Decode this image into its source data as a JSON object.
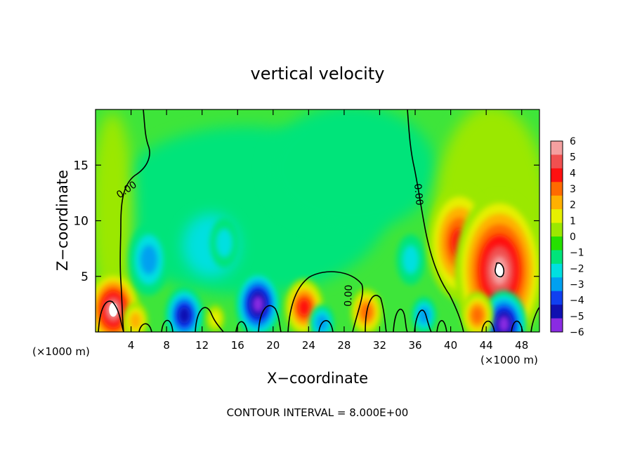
{
  "chart_data": {
    "type": "heatmap",
    "title": "vertical velocity",
    "xlabel": "X−coordinate",
    "ylabel": "Z−coordinate",
    "x_unit_left": "(×1000 m)",
    "x_unit_right": "(×1000 m)",
    "footer": "CONTOUR INTERVAL = 8.000E+00",
    "xlim": [
      0,
      50
    ],
    "ylim": [
      0,
      20
    ],
    "xticks": [
      4,
      8,
      12,
      16,
      20,
      24,
      28,
      32,
      36,
      40,
      44,
      48
    ],
    "xtick_labels": [
      "4",
      "8",
      "12",
      "16",
      "20",
      "24",
      "28",
      "32",
      "36",
      "40",
      "44",
      "48"
    ],
    "yticks": [
      5,
      10,
      15
    ],
    "ytick_labels": [
      "5",
      "10",
      "15"
    ],
    "contour_labels": [
      "0.00",
      "0.00",
      "0.00"
    ],
    "colorbar": {
      "levels": [
        6,
        5,
        4,
        3,
        2,
        1,
        0,
        -1,
        -2,
        -3,
        -4,
        -5,
        -6
      ],
      "labels": [
        "6",
        "5",
        "4",
        "3",
        "2",
        "1",
        "0",
        "−1",
        "−2",
        "−3",
        "−4",
        "−5",
        "−6"
      ],
      "colors": [
        "#f4a0a0",
        "#f05050",
        "#ff1010",
        "#ff6a00",
        "#ffb000",
        "#e6f000",
        "#9be800",
        "#25e000",
        "#00e47a",
        "#00e0e0",
        "#00a0f0",
        "#1040f0",
        "#1010b0",
        "#8a2be2"
      ]
    },
    "features": [
      {
        "x": 2.0,
        "z": 2.0,
        "value": 6.5
      },
      {
        "x": 4.5,
        "z": 1.0,
        "value": 2.5
      },
      {
        "x": 6.0,
        "z": 6.5,
        "value": -2.5
      },
      {
        "x": 10.0,
        "z": 1.5,
        "value": -4.5
      },
      {
        "x": 13.5,
        "z": 1.2,
        "value": 2.0
      },
      {
        "x": 14.5,
        "z": 8.0,
        "value": -1.8
      },
      {
        "x": 18.3,
        "z": 2.5,
        "value": -6.0
      },
      {
        "x": 23.5,
        "z": 2.2,
        "value": 4.5
      },
      {
        "x": 25.5,
        "z": 0.8,
        "value": -3.0
      },
      {
        "x": 30.5,
        "z": 1.8,
        "value": 4.0
      },
      {
        "x": 35.5,
        "z": 6.5,
        "value": -1.5
      },
      {
        "x": 37.0,
        "z": 1.5,
        "value": -3.0
      },
      {
        "x": 41.0,
        "z": 8.0,
        "value": 4.5
      },
      {
        "x": 45.5,
        "z": 5.5,
        "value": 6.5
      },
      {
        "x": 46.0,
        "z": 0.7,
        "value": -5.5
      },
      {
        "x": 43.0,
        "z": 1.5,
        "value": 4.0
      }
    ]
  }
}
